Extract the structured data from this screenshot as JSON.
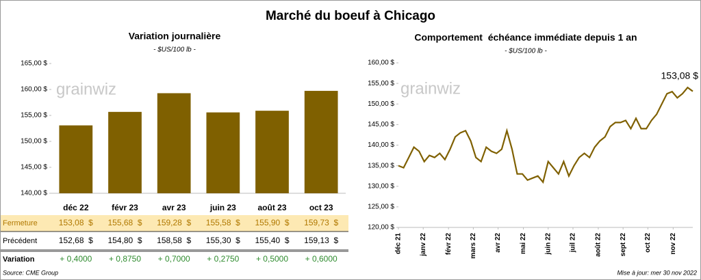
{
  "title": "Marché du boeuf à Chicago",
  "watermark": "grainwiz",
  "source": "Source: CME Group",
  "updated": "Mise à jour: mer 30 nov 2022",
  "chart_data": [
    {
      "type": "bar",
      "title": "Variation journalière",
      "subtitle": "- $US/100 lb -",
      "categories": [
        "déc 22",
        "févr 23",
        "avr 23",
        "juin 23",
        "août 23",
        "oct 23"
      ],
      "values": [
        153.08,
        155.68,
        159.28,
        155.58,
        155.9,
        159.73
      ],
      "color": "#7f6000",
      "ylim": [
        140,
        165
      ],
      "yticks": [
        {
          "value": 140,
          "label": "140,00 $"
        },
        {
          "value": 145,
          "label": "145,00 $"
        },
        {
          "value": 150,
          "label": "150,00 $"
        },
        {
          "value": 155,
          "label": "155,00 $"
        },
        {
          "value": 160,
          "label": "160,00 $"
        },
        {
          "value": 165,
          "label": "165,00 $"
        }
      ]
    },
    {
      "type": "line",
      "title": "Comportement  échéance immédiate depuis 1 an",
      "subtitle": "- $US/100 lb -",
      "annotation": "153,08 $",
      "color": "#7f6000",
      "x": [
        0,
        1,
        2,
        3,
        4,
        5,
        6,
        7,
        8,
        9,
        10,
        11,
        12,
        13,
        14,
        15,
        16,
        17,
        18,
        19,
        20,
        21,
        22,
        23,
        24,
        25,
        26,
        27,
        28,
        29,
        30,
        31,
        32,
        33,
        34,
        35,
        36,
        37,
        38,
        39,
        40,
        41,
        42,
        43,
        44,
        45,
        46,
        47,
        48,
        49,
        50,
        51,
        52,
        53,
        54,
        55,
        56,
        57
      ],
      "values": [
        135,
        134.5,
        137,
        139.5,
        138.5,
        136,
        137.5,
        137,
        138,
        136.5,
        139,
        142,
        143,
        143.5,
        141,
        137,
        136,
        139.5,
        138.5,
        138,
        139,
        143.5,
        139,
        133,
        133,
        131.5,
        132,
        132.5,
        131,
        136,
        134.5,
        133,
        136,
        132.5,
        135,
        137,
        138,
        137,
        139.5,
        141,
        142,
        144.5,
        145.5,
        145.5,
        146,
        144,
        146.5,
        144,
        144,
        146,
        147.5,
        150,
        152.5,
        153,
        151.5,
        152.5,
        154,
        153.08
      ],
      "xlim": [
        0,
        57
      ],
      "xticks": [
        {
          "value": 0,
          "label": "déc 21"
        },
        {
          "value": 4.8,
          "label": "janv 22"
        },
        {
          "value": 9.7,
          "label": "févr 22"
        },
        {
          "value": 14.5,
          "label": "mars 22"
        },
        {
          "value": 19.3,
          "label": "avr 22"
        },
        {
          "value": 24.2,
          "label": "mai 22"
        },
        {
          "value": 29,
          "label": "juin 22"
        },
        {
          "value": 33.8,
          "label": "juil 22"
        },
        {
          "value": 38.7,
          "label": "août 22"
        },
        {
          "value": 43.5,
          "label": "sept 22"
        },
        {
          "value": 48.3,
          "label": "oct 22"
        },
        {
          "value": 53.2,
          "label": "nov 22"
        }
      ],
      "ylim": [
        120,
        160
      ],
      "yticks": [
        {
          "value": 120,
          "label": "120,00 $"
        },
        {
          "value": 125,
          "label": "125,00 $"
        },
        {
          "value": 130,
          "label": "130,00 $"
        },
        {
          "value": 135,
          "label": "135,00 $"
        },
        {
          "value": 140,
          "label": "140,00 $"
        },
        {
          "value": 145,
          "label": "145,00 $"
        },
        {
          "value": 150,
          "label": "150,00 $"
        },
        {
          "value": 155,
          "label": "155,00 $"
        },
        {
          "value": 160,
          "label": "160,00 $"
        }
      ]
    }
  ],
  "table": {
    "rows": [
      {
        "label": "Fermeture",
        "cells": [
          "153,08  $",
          "155,68  $",
          "159,28  $",
          "155,58  $",
          "155,90  $",
          "159,73  $"
        ]
      },
      {
        "label": "Précédent",
        "cells": [
          "152,68  $",
          "154,80  $",
          "158,58  $",
          "155,30  $",
          "155,40  $",
          "159,13  $"
        ]
      },
      {
        "label": "Variation",
        "cells": [
          "+ 0,4000",
          "+ 0,8750",
          "+ 0,7000",
          "+ 0,2750",
          "+ 0,5000",
          "+ 0,6000"
        ]
      }
    ]
  }
}
